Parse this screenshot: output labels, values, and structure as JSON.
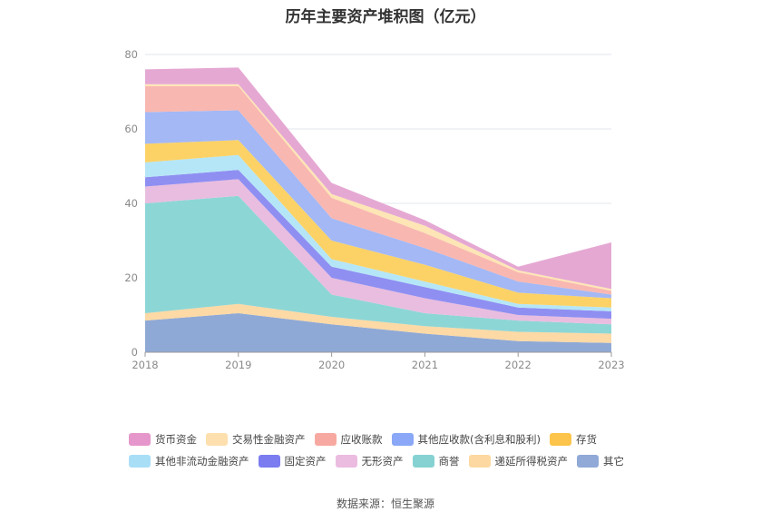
{
  "title": "历年主要资产堆积图（亿元）",
  "source_label": "数据来源：恒生聚源",
  "chart_data": {
    "type": "area",
    "stacked": true,
    "title": "历年主要资产堆积图（亿元）",
    "x": [
      "2018",
      "2019",
      "2020",
      "2021",
      "2022",
      "2023"
    ],
    "ylim": [
      0,
      80
    ],
    "yticks": [
      0,
      20,
      40,
      60,
      80
    ],
    "grid": true,
    "legend_position": "bottom",
    "series": [
      {
        "name": "其它",
        "color": "#8fa9d6",
        "values": [
          8.5,
          10.5,
          7.5,
          5.0,
          3.0,
          2.5
        ]
      },
      {
        "name": "递延所得税资产",
        "color": "#fcd9a5",
        "values": [
          2.0,
          2.5,
          2.0,
          2.0,
          2.5,
          2.5
        ]
      },
      {
        "name": "商誉",
        "color": "#8dd6d6",
        "values": [
          29.5,
          29.0,
          6.0,
          3.5,
          3.0,
          2.5
        ]
      },
      {
        "name": "无形资产",
        "color": "#e9bddf",
        "values": [
          4.5,
          4.5,
          4.5,
          4.0,
          1.5,
          1.5
        ]
      },
      {
        "name": "固定资产",
        "color": "#8f8ff2",
        "values": [
          2.5,
          2.5,
          3.0,
          3.0,
          2.0,
          2.0
        ]
      },
      {
        "name": "其他非流动金融资产",
        "color": "#b5e6f7",
        "values": [
          4.0,
          4.0,
          2.0,
          1.5,
          1.0,
          1.0
        ]
      },
      {
        "name": "存货",
        "color": "#fcd266",
        "values": [
          5.0,
          4.0,
          5.0,
          4.5,
          3.0,
          2.5
        ]
      },
      {
        "name": "其他应收款(含利息和股利)",
        "color": "#a3b8f5",
        "values": [
          8.5,
          8.0,
          6.0,
          4.5,
          3.0,
          1.0
        ]
      },
      {
        "name": "应收账款",
        "color": "#f9b7b1",
        "values": [
          7.0,
          6.5,
          5.5,
          4.0,
          2.5,
          1.0
        ]
      },
      {
        "name": "交易性金融资产",
        "color": "#fde5b5",
        "values": [
          0.5,
          0.5,
          1.0,
          2.0,
          0.5,
          0.5
        ]
      },
      {
        "name": "货币资金",
        "color": "#e5a8d3",
        "values": [
          4.0,
          4.5,
          3.0,
          1.5,
          1.0,
          12.5
        ]
      }
    ]
  },
  "legend": {
    "row1": [
      {
        "label": "货币资金",
        "color": "#e597cb"
      },
      {
        "label": "交易性金融资产",
        "color": "#fde0ae"
      },
      {
        "label": "应收账款",
        "color": "#f7a9a1"
      },
      {
        "label": "其他应收款(含利息和股利)",
        "color": "#8aa8f7"
      },
      {
        "label": "存货",
        "color": "#fcc44a"
      }
    ],
    "row2": [
      {
        "label": "其他非流动金融资产",
        "color": "#a9def7"
      },
      {
        "label": "固定资产",
        "color": "#7b7cf0"
      },
      {
        "label": "无形资产",
        "color": "#ebbbe0"
      },
      {
        "label": "商誉",
        "color": "#86d2d2"
      },
      {
        "label": "递延所得税资产",
        "color": "#fdd8a0"
      },
      {
        "label": "其它",
        "color": "#90a9d6"
      }
    ]
  }
}
